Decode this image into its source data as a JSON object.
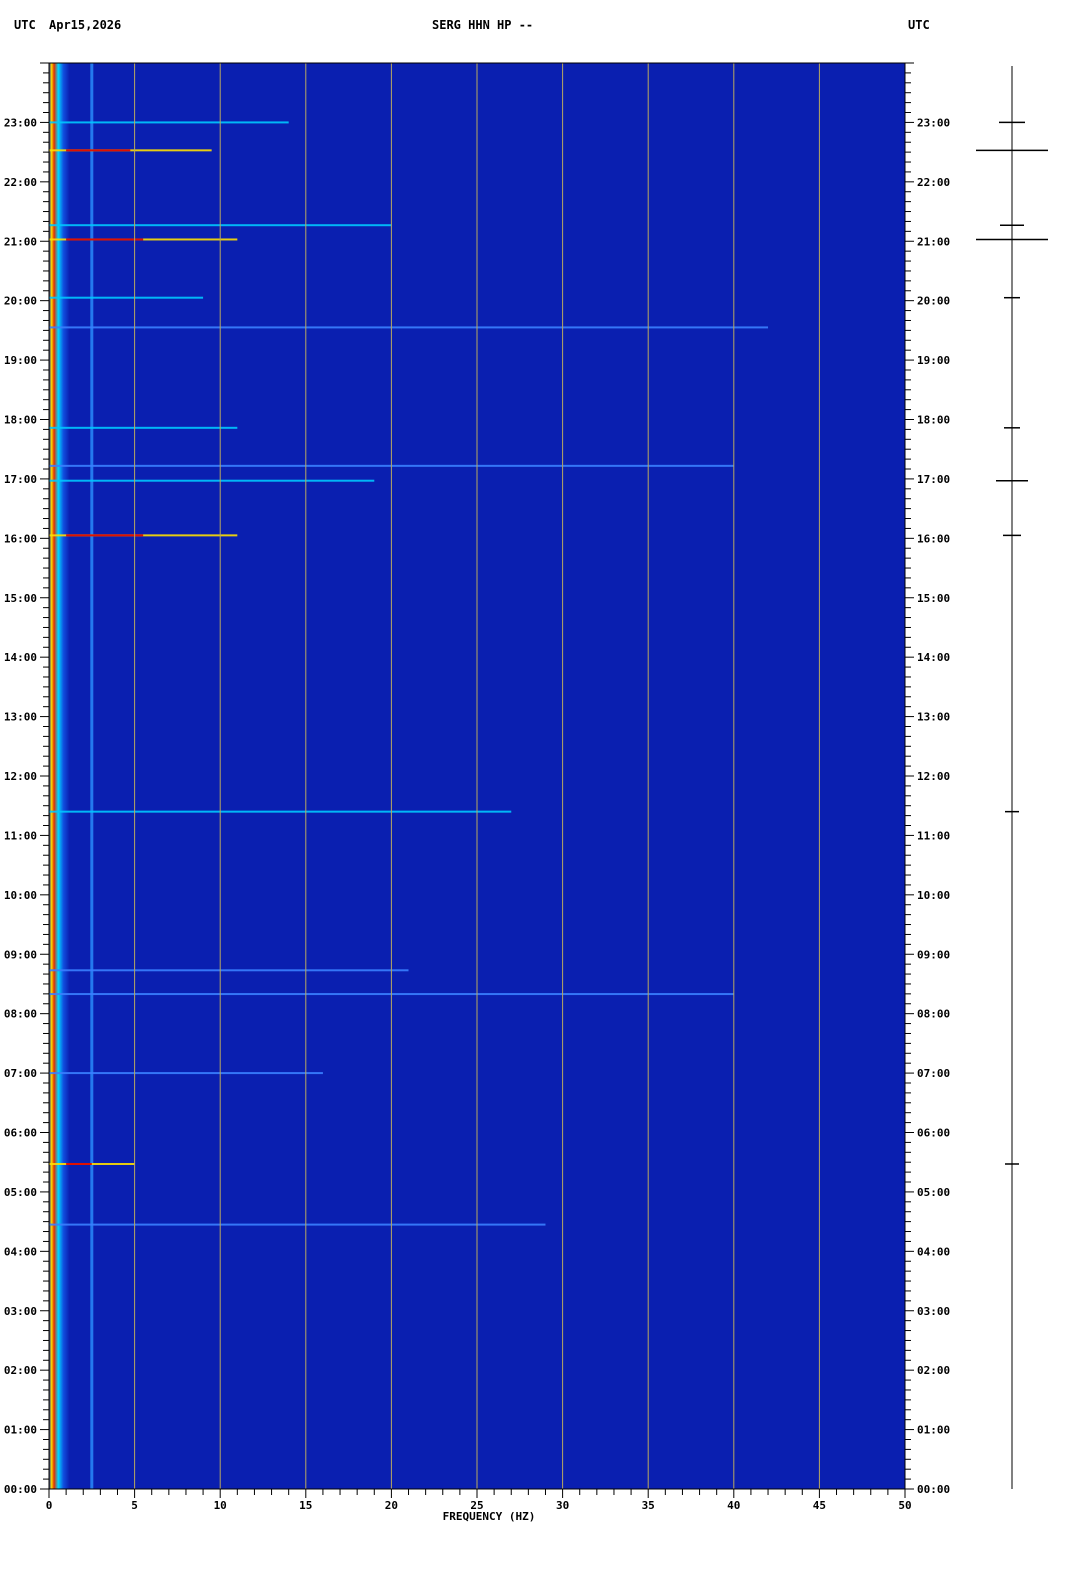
{
  "header": {
    "left_tz": "UTC",
    "date": "Apr15,2026",
    "title": "SERG HHN HP --",
    "right_tz": "UTC"
  },
  "chart_data": {
    "type": "heatmap",
    "title": "SERG HHN HP --",
    "xlabel": "FREQUENCY (HZ)",
    "ylabel": "",
    "xlim": [
      0,
      50
    ],
    "ylim_hours": [
      0,
      24
    ],
    "x_ticks": [
      "0",
      "5",
      "10",
      "15",
      "20",
      "25",
      "30",
      "35",
      "40",
      "45",
      "50"
    ],
    "y_ticks": [
      "00:00",
      "01:00",
      "02:00",
      "03:00",
      "04:00",
      "05:00",
      "06:00",
      "07:00",
      "08:00",
      "09:00",
      "10:00",
      "11:00",
      "12:00",
      "13:00",
      "14:00",
      "15:00",
      "16:00",
      "17:00",
      "18:00",
      "19:00",
      "20:00",
      "21:00",
      "22:00",
      "23:00"
    ],
    "grid": true,
    "colors": {
      "background": "#0a1fb0",
      "grid": "#b8a860",
      "low": "#0a1fb0",
      "mid": "#00c8ff",
      "high": "#ffe000",
      "peak": "#e01000"
    },
    "persistent_bands_hz": [
      0.3,
      2.5
    ],
    "events": [
      {
        "time": 23.0,
        "fmax": 14,
        "level": 0.6
      },
      {
        "time": 22.53,
        "fmax": 9.5,
        "level": 1.0
      },
      {
        "time": 21.27,
        "fmax": 20,
        "level": 0.5
      },
      {
        "time": 21.03,
        "fmax": 11,
        "level": 0.9
      },
      {
        "time": 20.05,
        "fmax": 9,
        "level": 0.7
      },
      {
        "time": 19.55,
        "fmax": 42,
        "level": 0.4
      },
      {
        "time": 17.86,
        "fmax": 11,
        "level": 0.5
      },
      {
        "time": 17.22,
        "fmax": 40,
        "level": 0.35
      },
      {
        "time": 16.97,
        "fmax": 19,
        "level": 0.6
      },
      {
        "time": 16.05,
        "fmax": 11,
        "level": 0.9
      },
      {
        "time": 11.4,
        "fmax": 27,
        "level": 0.5
      },
      {
        "time": 8.73,
        "fmax": 21,
        "level": 0.35
      },
      {
        "time": 8.33,
        "fmax": 40,
        "level": 0.4
      },
      {
        "time": 7.0,
        "fmax": 16,
        "level": 0.4
      },
      {
        "time": 5.47,
        "fmax": 5,
        "level": 1.0
      },
      {
        "time": 4.45,
        "fmax": 29,
        "level": 0.3
      }
    ],
    "trace_events": [
      {
        "time": 23.0,
        "amp": 13
      },
      {
        "time": 22.53,
        "amp": 36
      },
      {
        "time": 21.27,
        "amp": 12
      },
      {
        "time": 21.03,
        "amp": 36
      },
      {
        "time": 20.05,
        "amp": 8
      },
      {
        "time": 17.86,
        "amp": 8
      },
      {
        "time": 16.97,
        "amp": 16
      },
      {
        "time": 16.05,
        "amp": 9
      },
      {
        "time": 11.4,
        "amp": 7
      },
      {
        "time": 5.47,
        "amp": 7
      }
    ]
  }
}
